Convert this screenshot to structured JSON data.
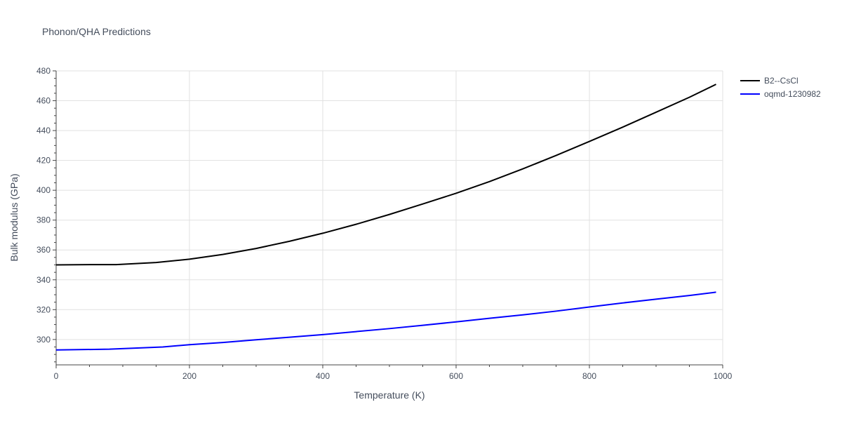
{
  "chart_data": {
    "type": "line",
    "title": "Phonon/QHA Predictions",
    "xlabel": "Temperature (K)",
    "ylabel": "Bulk modulus (GPa)",
    "xlim": [
      0,
      1000
    ],
    "ylim": [
      283,
      480
    ],
    "x_ticks": [
      0,
      200,
      400,
      600,
      800,
      1000
    ],
    "y_ticks": [
      300,
      320,
      340,
      360,
      380,
      400,
      420,
      440,
      460,
      480
    ],
    "grid": true,
    "legend_position": "top-right",
    "series": [
      {
        "name": "B2--CsCl",
        "color": "#000000",
        "x": [
          0,
          50,
          90,
          150,
          200,
          250,
          300,
          350,
          400,
          450,
          500,
          550,
          600,
          650,
          700,
          750,
          800,
          850,
          900,
          950,
          990
        ],
        "values": [
          350,
          350.2,
          350.2,
          351.6,
          353.8,
          357,
          361,
          365.8,
          371.2,
          377.2,
          383.8,
          390.8,
          398,
          405.8,
          414.3,
          423.3,
          432.7,
          442.3,
          452.3,
          462.3,
          471
        ]
      },
      {
        "name": "oqmd-1230982",
        "color": "#0000ff",
        "x": [
          0,
          80,
          160,
          200,
          250,
          300,
          350,
          400,
          450,
          500,
          550,
          600,
          650,
          700,
          750,
          800,
          850,
          900,
          950,
          990
        ],
        "values": [
          293,
          293.5,
          295,
          296.5,
          298,
          299.8,
          301.5,
          303.3,
          305.3,
          307.3,
          309.5,
          311.8,
          314.2,
          316.5,
          319,
          321.8,
          324.5,
          327,
          329.5,
          331.7
        ]
      }
    ]
  }
}
